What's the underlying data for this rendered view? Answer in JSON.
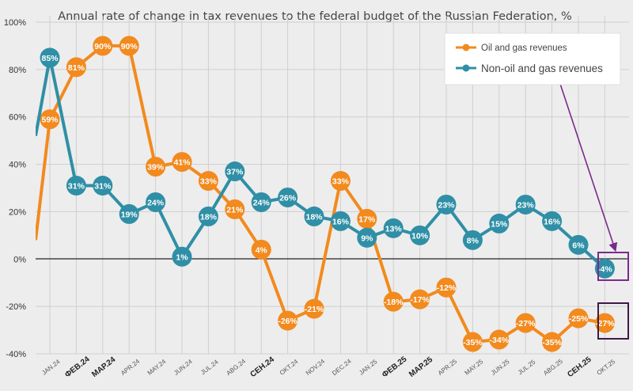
{
  "chart_data": {
    "type": "line",
    "title": "Annual rate of change in tax revenues to the federal budget of the Russian Federation, %",
    "categories": [
      "JAN.24",
      "ФЕВ.24",
      "МАР.24",
      "APR.24",
      "MAY.24",
      "JUN.24",
      "JUL.24",
      "ABG.24",
      "СЕН.24",
      "OKT.24",
      "NOV.24",
      "DEC.24",
      "JAN.25",
      "ФЕВ.25",
      "МАР.25",
      "APR.25",
      "MAY.25",
      "JUN.25",
      "JUL.25",
      "ABG.25",
      "СЕН.25",
      "OKT.25"
    ],
    "bold_categories": [
      "ФЕВ.24",
      "МАР.24",
      "СЕН.24",
      "ФЕВ.25",
      "МАР.25",
      "СЕН.25"
    ],
    "ylim": [
      -40,
      100
    ],
    "yticks": [
      100,
      80,
      60,
      40,
      20,
      0,
      -20,
      -40
    ],
    "ytick_labels": [
      "100%",
      "80%",
      "60%",
      "40%",
      "20%",
      "0%",
      "-20%",
      "-40%"
    ],
    "series": [
      {
        "name": "Oil and gas revenues",
        "color": "#f28a1e",
        "values": [
          59,
          81,
          90,
          90,
          39,
          41,
          33,
          21,
          4,
          -26,
          -21,
          33,
          17,
          -18,
          -17,
          -12,
          -35,
          -34,
          -27,
          -35,
          -25,
          -27
        ],
        "labels": [
          "59%",
          "81%",
          "90%",
          "90%",
          "39%",
          "41%",
          "33%",
          "21%",
          "4%",
          "-26%",
          "-21%",
          "33%",
          "17%",
          "-18%",
          "-17%",
          "-12%",
          "-35%",
          "-34%",
          "-27%",
          "-35%",
          "-25%",
          "-27%"
        ],
        "lead_in_value": 8
      },
      {
        "name": "Non-oil and gas revenues",
        "color": "#2f8fa6",
        "values": [
          85,
          31,
          31,
          19,
          24,
          1,
          18,
          37,
          24,
          26,
          18,
          16,
          9,
          13,
          10,
          23,
          8,
          15,
          23,
          16,
          6,
          -4
        ],
        "labels": [
          "85%",
          "31%",
          "31%",
          "19%",
          "24%",
          "1%",
          "18%",
          "37%",
          "24%",
          "26%",
          "18%",
          "16%",
          "9%",
          "13%",
          "10%",
          "23%",
          "8%",
          "15%",
          "23%",
          "16%",
          "6%",
          "-4%"
        ],
        "lead_in_value": 52
      }
    ],
    "legend": "top-right",
    "annotations": {
      "highlight_color": "#7b2a8c",
      "highlight_box_color_oil": "#3d1a45"
    }
  }
}
